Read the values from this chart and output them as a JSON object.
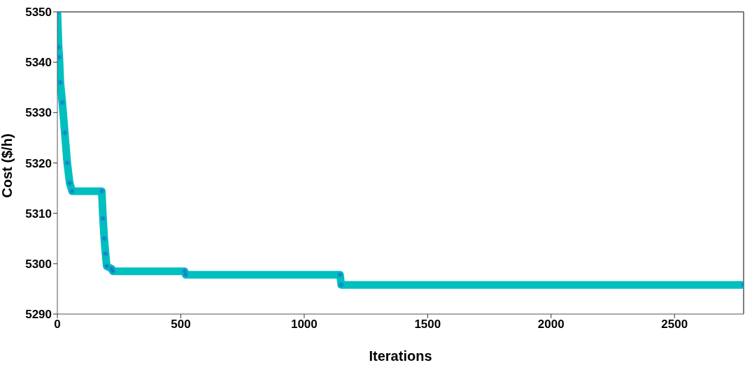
{
  "chart_data": {
    "type": "line",
    "xlabel": "Iterations",
    "ylabel": "Cost ($/h)",
    "x": [
      0,
      5,
      8,
      12,
      20,
      30,
      40,
      50,
      60,
      180,
      185,
      190,
      195,
      200,
      220,
      225,
      515,
      520,
      1145,
      1150,
      2780
    ],
    "series": [
      {
        "color": "#00bfbf",
        "values": [
          5350,
          5343,
          5341,
          5336,
          5332,
          5326,
          5320,
          5316,
          5314.4,
          5314.4,
          5309,
          5305,
          5302,
          5299.5,
          5299,
          5298.5,
          5298.5,
          5297.8,
          5297.8,
          5295.8,
          5295.8
        ]
      }
    ],
    "xlim": [
      0,
      2780
    ],
    "ylim": [
      5290,
      5350
    ],
    "xticks": [
      0,
      500,
      1000,
      1500,
      2000,
      2500
    ],
    "yticks": [
      5290,
      5300,
      5310,
      5320,
      5330,
      5340,
      5350
    ],
    "grid": false,
    "legend": false,
    "marker": "cross",
    "line_style": "solid"
  }
}
